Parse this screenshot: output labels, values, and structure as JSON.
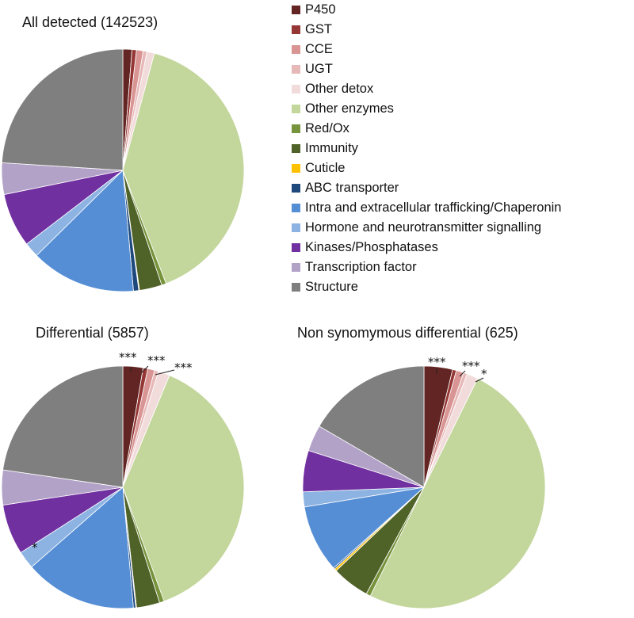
{
  "chart_data": [
    {
      "type": "pie",
      "title": "All detected (142523)",
      "categories": [
        "P450",
        "GST",
        "CCE",
        "UGT",
        "Other detox",
        "Other enzymes",
        "Red/Ox",
        "Immunity",
        "Cuticle",
        "ABC transporter",
        "Intra and extracellular trafficking/Chaperonin",
        "Hormone and neurotransmitter signalling",
        "Kinases/Phosphatases",
        "Transcription factor",
        "Structure"
      ],
      "values": [
        1.2,
        0.6,
        0.9,
        0.5,
        1.0,
        40.0,
        0.6,
        3.0,
        0.1,
        0.7,
        14.0,
        2.0,
        7.2,
        4.2,
        24.0
      ],
      "annotations": []
    },
    {
      "type": "pie",
      "title": "Differential (5857)",
      "categories": [
        "P450",
        "GST",
        "CCE",
        "UGT",
        "Other detox",
        "Other enzymes",
        "Red/Ox",
        "Immunity",
        "Cuticle",
        "ABC transporter",
        "Intra and extracellular trafficking/Chaperonin",
        "Hormone and neurotransmitter signalling",
        "Kinases/Phosphatases",
        "Transcription factor",
        "Structure"
      ],
      "values": [
        2.6,
        0.6,
        0.9,
        0.5,
        1.5,
        37.0,
        0.6,
        3.0,
        0.1,
        0.3,
        14.5,
        2.3,
        6.5,
        4.5,
        22.0
      ],
      "annotations": [
        "***",
        "***",
        "***",
        "*"
      ]
    },
    {
      "type": "pie",
      "title": "Non synomymous differential (625)",
      "categories": [
        "P450",
        "GST",
        "CCE",
        "UGT",
        "Other detox",
        "Other enzymes",
        "Red/Ox",
        "Immunity",
        "Cuticle",
        "ABC transporter",
        "Intra and extracellular trafficking/Chaperonin",
        "Hormone and neurotransmitter signalling",
        "Kinases/Phosphatases",
        "Transcription factor",
        "Structure"
      ],
      "values": [
        3.8,
        0.5,
        1.0,
        0.5,
        1.5,
        50.0,
        0.6,
        5.0,
        0.3,
        0.2,
        9.0,
        2.0,
        5.5,
        3.5,
        16.6
      ],
      "annotations": [
        "***",
        "***",
        "*"
      ]
    }
  ],
  "legend": {
    "items": [
      {
        "label": "P450",
        "color": "#632523"
      },
      {
        "label": "GST",
        "color": "#953735"
      },
      {
        "label": "CCE",
        "color": "#d99594"
      },
      {
        "label": "UGT",
        "color": "#e6b9b8"
      },
      {
        "label": "Other detox",
        "color": "#f2dcdb"
      },
      {
        "label": "Other enzymes",
        "color": "#c3d69b"
      },
      {
        "label": "Red/Ox",
        "color": "#77933c"
      },
      {
        "label": "Immunity",
        "color": "#4f6228"
      },
      {
        "label": "Cuticle",
        "color": "#ffc000"
      },
      {
        "label": "ABC transporter",
        "color": "#1f497d"
      },
      {
        "label": "Intra and extracellular trafficking/Chaperonin",
        "color": "#558ed5"
      },
      {
        "label": "Hormone and neurotransmitter signalling",
        "color": "#8db3e2"
      },
      {
        "label": "Kinases/Phosphatases",
        "color": "#7030a0"
      },
      {
        "label": "Transcription factor",
        "color": "#b3a2c7"
      },
      {
        "label": "Structure",
        "color": "#7f7f7f"
      }
    ]
  }
}
